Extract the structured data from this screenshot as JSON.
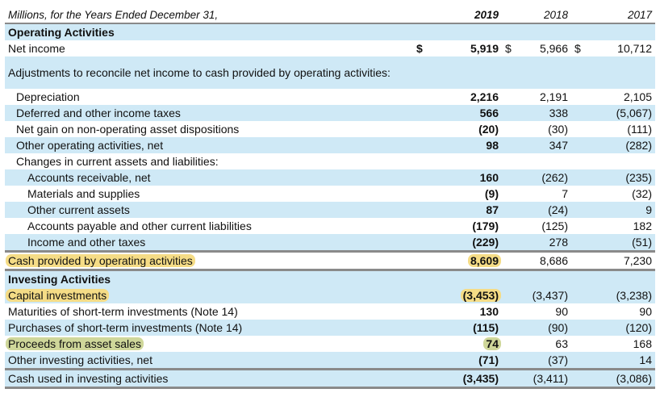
{
  "header": {
    "label": "Millions, for the Years Ended December 31,",
    "years": [
      "2019",
      "2018",
      "2017"
    ]
  },
  "operating": {
    "title": "Operating Activities",
    "net_income": {
      "label": "Net income",
      "currency": "$",
      "v2019": "5,919",
      "v2018": "5,966",
      "v2017": "10,712"
    },
    "adjustments_label": "Adjustments to reconcile net income to cash provided by operating activities:",
    "depreciation": {
      "label": "Depreciation",
      "v2019": "2,216",
      "v2018": "2,191",
      "v2017": "2,105"
    },
    "deferred_taxes": {
      "label": "Deferred and other income taxes",
      "v2019": "566",
      "v2018": "338",
      "v2017": "(5,067)"
    },
    "net_gain": {
      "label": "Net gain on non-operating asset dispositions",
      "v2019": "(20)",
      "v2018": "(30)",
      "v2017": "(111)"
    },
    "other_operating": {
      "label": "Other operating activities, net",
      "v2019": "98",
      "v2018": "347",
      "v2017": "(282)"
    },
    "changes_label": "Changes in current assets and liabilities:",
    "accounts_receivable": {
      "label": "Accounts receivable, net",
      "v2019": "160",
      "v2018": "(262)",
      "v2017": "(235)"
    },
    "materials": {
      "label": "Materials and supplies",
      "v2019": "(9)",
      "v2018": "7",
      "v2017": "(32)"
    },
    "other_current": {
      "label": "Other current assets",
      "v2019": "87",
      "v2018": "(24)",
      "v2017": "9"
    },
    "accounts_payable": {
      "label": "Accounts payable and other current liabilities",
      "v2019": "(179)",
      "v2018": "(125)",
      "v2017": "182"
    },
    "income_taxes": {
      "label": "Income and other taxes",
      "v2019": "(229)",
      "v2018": "278",
      "v2017": "(51)"
    },
    "total": {
      "label": "Cash provided by operating activities",
      "v2019": "8,609",
      "v2018": "8,686",
      "v2017": "7,230"
    }
  },
  "investing": {
    "title": "Investing Activities",
    "capital": {
      "label": "Capital investments",
      "v2019": "(3,453)",
      "v2018": "(3,437)",
      "v2017": "(3,238)"
    },
    "maturities": {
      "label": "Maturities of short-term investments (Note 14)",
      "v2019": "130",
      "v2018": "90",
      "v2017": "90"
    },
    "purchases": {
      "label": "Purchases of short-term investments (Note 14)",
      "v2019": "(115)",
      "v2018": "(90)",
      "v2017": "(120)"
    },
    "proceeds": {
      "label": "Proceeds from asset sales",
      "v2019": "74",
      "v2018": "63",
      "v2017": "168"
    },
    "other_investing": {
      "label": "Other investing activities, net",
      "v2019": "(71)",
      "v2018": "(37)",
      "v2017": "14"
    },
    "total": {
      "label": "Cash used in investing activities",
      "v2019": "(3,435)",
      "v2018": "(3,411)",
      "v2017": "(3,086)"
    }
  },
  "colors": {
    "row_shade": "#cfe9f6",
    "highlight_yellow": "#f5dc86",
    "highlight_green": "#cfd79a",
    "rule_gray": "#8a8a8a"
  }
}
